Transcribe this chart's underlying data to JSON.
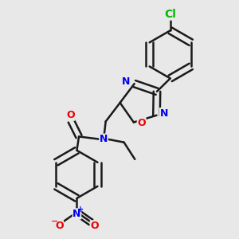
{
  "bg_color": "#e8e8e8",
  "bond_color": "#1a1a1a",
  "bond_width": 1.8,
  "atom_colors": {
    "C": "#1a1a1a",
    "N": "#0000ee",
    "O": "#ee0000",
    "Cl": "#00bb00"
  },
  "font_size": 9,
  "double_sep": 0.018
}
